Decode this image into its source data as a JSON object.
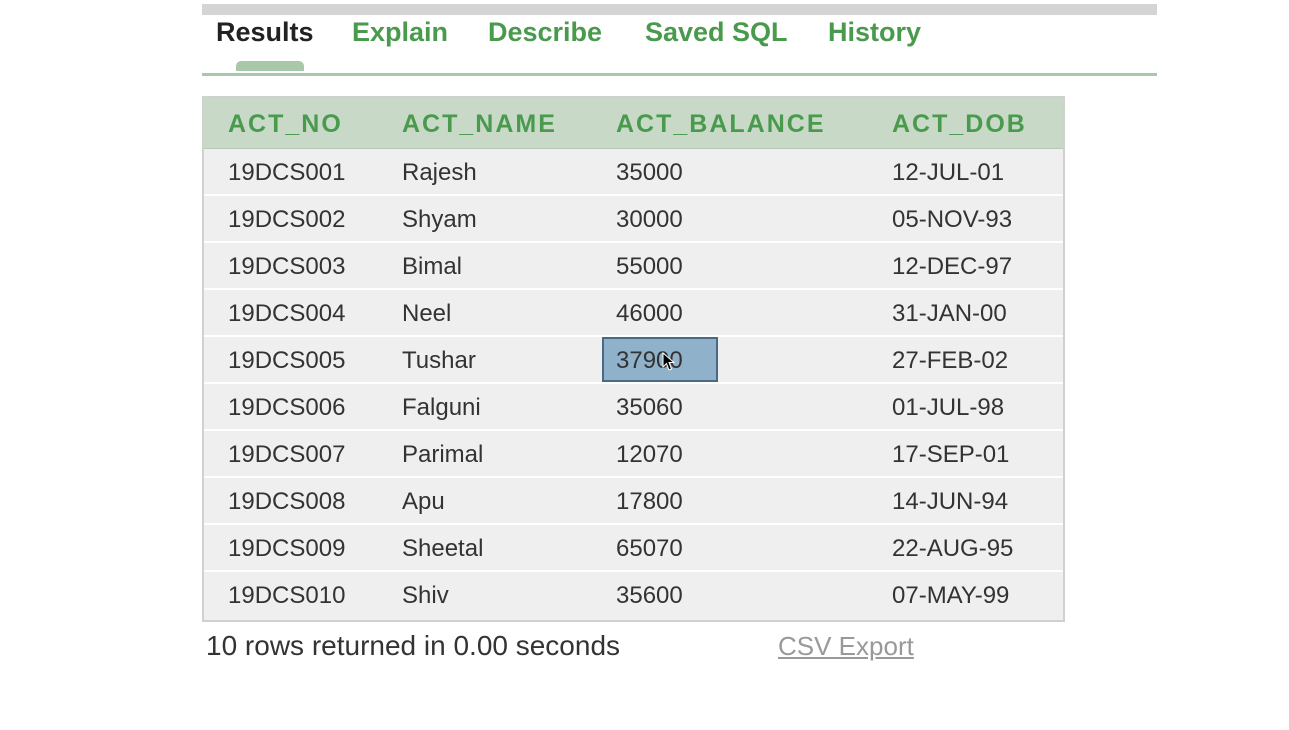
{
  "tabs": [
    {
      "label": "Results",
      "active": true
    },
    {
      "label": "Explain",
      "active": false
    },
    {
      "label": "Describe",
      "active": false
    },
    {
      "label": "Saved SQL",
      "active": false
    },
    {
      "label": "History",
      "active": false
    }
  ],
  "table": {
    "columns": [
      "ACT_NO",
      "ACT_NAME",
      "ACT_BALANCE",
      "ACT_DOB"
    ],
    "rows": [
      [
        "19DCS001",
        "Rajesh",
        "35000",
        "12-JUL-01"
      ],
      [
        "19DCS002",
        "Shyam",
        "30000",
        "05-NOV-93"
      ],
      [
        "19DCS003",
        "Bimal",
        "55000",
        "12-DEC-97"
      ],
      [
        "19DCS004",
        "Neel",
        "46000",
        "31-JAN-00"
      ],
      [
        "19DCS005",
        "Tushar",
        "37900",
        "27-FEB-02"
      ],
      [
        "19DCS006",
        "Falguni",
        "35060",
        "01-JUL-98"
      ],
      [
        "19DCS007",
        "Parimal",
        "12070",
        "17-SEP-01"
      ],
      [
        "19DCS008",
        "Apu",
        "17800",
        "14-JUN-94"
      ],
      [
        "19DCS009",
        "Sheetal",
        "65070",
        "22-AUG-95"
      ],
      [
        "19DCS010",
        "Shiv",
        "35600",
        "07-MAY-99"
      ]
    ],
    "selected_cell": {
      "row": 4,
      "column": 2
    }
  },
  "footer": {
    "status": "10 rows returned in 0.00 seconds",
    "export_label": "CSV Export"
  },
  "colors": {
    "accent_green": "#4a9a4e",
    "header_bg": "#c8d9c8",
    "row_bg": "#efefef",
    "selection_bg": "#8fb1c9"
  },
  "icons": {
    "cursor": "mouse-pointer-icon"
  }
}
